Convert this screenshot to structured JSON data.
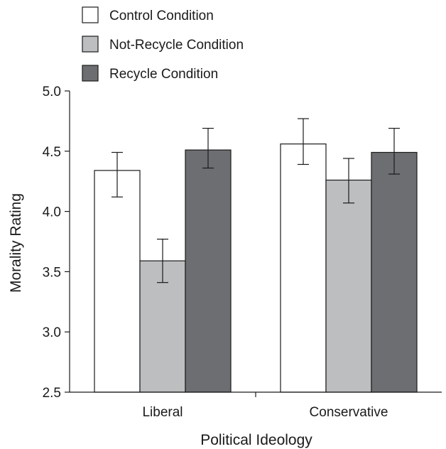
{
  "chart_data": {
    "type": "bar",
    "categories": [
      "Liberal",
      "Conservative"
    ],
    "series": [
      {
        "name": "Control Condition",
        "color": "#ffffff",
        "values": [
          4.34,
          4.56
        ],
        "error": [
          [
            4.12,
            4.49
          ],
          [
            4.39,
            4.77
          ]
        ]
      },
      {
        "name": "Not-Recycle Condition",
        "color": "#bcbec0",
        "values": [
          3.59,
          4.26
        ],
        "error": [
          [
            3.41,
            3.77
          ],
          [
            4.07,
            4.44
          ]
        ]
      },
      {
        "name": "Recycle Condition",
        "color": "#6d6e71",
        "values": [
          4.51,
          4.49
        ],
        "error": [
          [
            4.36,
            4.69
          ],
          [
            4.31,
            4.69
          ]
        ]
      }
    ],
    "xlabel": "Political Ideology",
    "ylabel": "Morality Rating",
    "ylim": [
      2.5,
      5.0
    ],
    "yticks": [
      "2.5",
      "3.0",
      "3.5",
      "4.0",
      "4.5",
      "5.0"
    ],
    "grid": false,
    "legend_position": "top-left"
  }
}
